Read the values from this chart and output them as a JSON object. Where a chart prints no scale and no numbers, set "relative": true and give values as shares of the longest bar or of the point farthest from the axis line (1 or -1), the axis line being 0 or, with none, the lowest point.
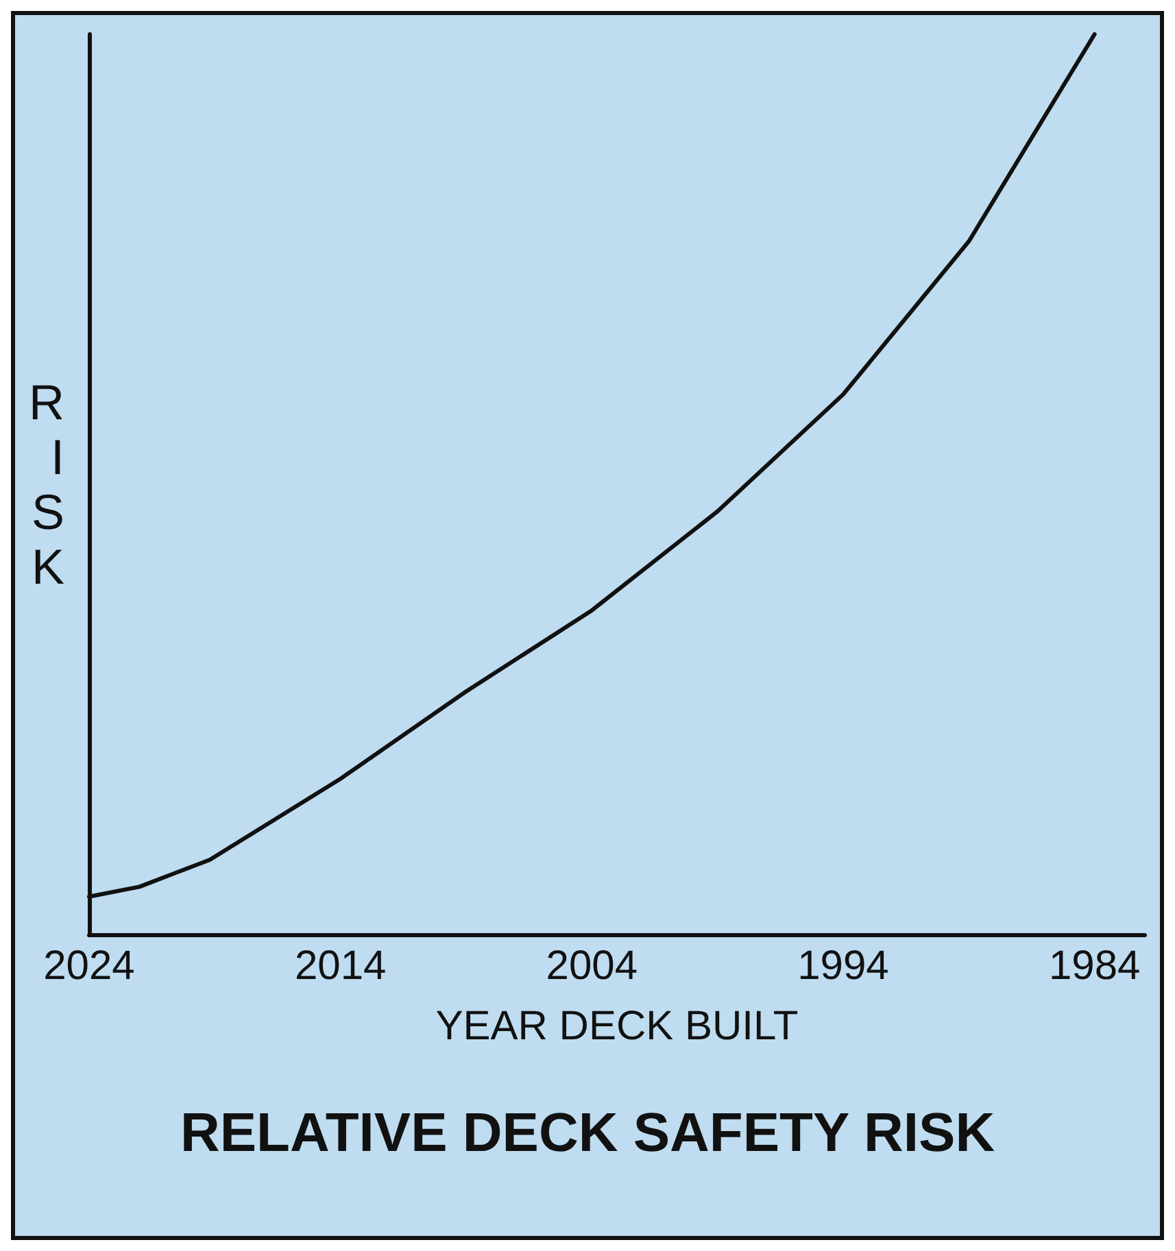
{
  "chart_data": {
    "type": "line",
    "title": "RELATIVE DECK SAFETY RISK",
    "xlabel": "YEAR DECK BUILT",
    "ylabel": "RISK",
    "relative": true,
    "x": [
      2024,
      2022,
      2019.2,
      2014,
      2009,
      2004,
      1999,
      1994,
      1989,
      1984
    ],
    "xlim": [
      2024,
      1982
    ],
    "xticks": [
      2024,
      2014,
      2004,
      1994,
      1984
    ],
    "series": [
      {
        "color": "#111111",
        "values": [
          0.042,
          0.053,
          0.083,
          0.173,
          0.27,
          0.36,
          0.47,
          0.6,
          0.77,
          1
        ]
      }
    ],
    "grid": false,
    "marker": "none",
    "line_style": "solid"
  }
}
